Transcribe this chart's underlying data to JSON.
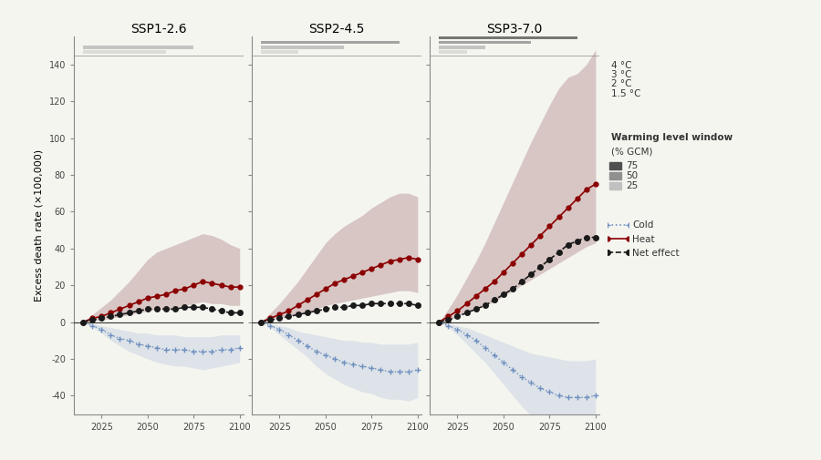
{
  "panels": [
    "SSP1-2.6",
    "SSP2-4.5",
    "SSP3-7.0"
  ],
  "years": [
    2015,
    2020,
    2025,
    2030,
    2035,
    2040,
    2045,
    2050,
    2055,
    2060,
    2065,
    2070,
    2075,
    2080,
    2085,
    2090,
    2095,
    2100
  ],
  "ssp1": {
    "heat_med": [
      0,
      2,
      3,
      5,
      7,
      9,
      11,
      13,
      14,
      15,
      17,
      18,
      20,
      22,
      21,
      20,
      19,
      19
    ],
    "heat_q75": [
      0,
      4,
      8,
      12,
      17,
      22,
      28,
      34,
      38,
      40,
      42,
      44,
      46,
      48,
      47,
      45,
      42,
      40
    ],
    "heat_q25": [
      0,
      1,
      1,
      2,
      3,
      4,
      5,
      6,
      7,
      7,
      8,
      9,
      10,
      11,
      10,
      10,
      9,
      9
    ],
    "net_med": [
      0,
      1,
      2,
      3,
      4,
      5,
      6,
      7,
      7,
      7,
      7,
      8,
      8,
      8,
      7,
      6,
      5,
      5
    ],
    "cold_med": [
      0,
      -2,
      -4,
      -7,
      -9,
      -10,
      -12,
      -13,
      -14,
      -15,
      -15,
      -15,
      -16,
      -16,
      -16,
      -15,
      -15,
      -14
    ],
    "cold_q75": [
      0,
      -1,
      -2,
      -3,
      -4,
      -5,
      -6,
      -6,
      -7,
      -7,
      -7,
      -8,
      -8,
      -8,
      -8,
      -7,
      -7,
      -7
    ],
    "cold_q25": [
      0,
      -3,
      -6,
      -10,
      -13,
      -16,
      -18,
      -20,
      -22,
      -23,
      -24,
      -24,
      -25,
      -26,
      -25,
      -24,
      -23,
      -22
    ]
  },
  "ssp2": {
    "heat_med": [
      0,
      2,
      4,
      6,
      9,
      12,
      15,
      18,
      21,
      23,
      25,
      27,
      29,
      31,
      33,
      34,
      35,
      34
    ],
    "heat_q75": [
      0,
      5,
      10,
      16,
      22,
      29,
      36,
      43,
      48,
      52,
      55,
      58,
      62,
      65,
      68,
      70,
      70,
      68
    ],
    "heat_q25": [
      0,
      1,
      2,
      3,
      4,
      5,
      7,
      9,
      10,
      11,
      12,
      13,
      14,
      15,
      16,
      17,
      17,
      16
    ],
    "net_med": [
      0,
      1,
      2,
      3,
      4,
      5,
      6,
      7,
      8,
      8,
      9,
      9,
      10,
      10,
      10,
      10,
      10,
      9
    ],
    "cold_med": [
      0,
      -2,
      -4,
      -7,
      -10,
      -13,
      -16,
      -18,
      -20,
      -22,
      -23,
      -24,
      -25,
      -26,
      -27,
      -27,
      -27,
      -26
    ],
    "cold_q75": [
      0,
      -1,
      -2,
      -3,
      -5,
      -6,
      -7,
      -8,
      -9,
      -10,
      -10,
      -11,
      -11,
      -12,
      -12,
      -12,
      -12,
      -11
    ],
    "cold_q25": [
      0,
      -3,
      -7,
      -11,
      -15,
      -19,
      -24,
      -28,
      -31,
      -34,
      -36,
      -38,
      -39,
      -41,
      -42,
      -42,
      -43,
      -41
    ]
  },
  "ssp3": {
    "heat_med": [
      0,
      3,
      6,
      10,
      14,
      18,
      22,
      27,
      32,
      37,
      42,
      47,
      52,
      57,
      62,
      67,
      72,
      75
    ],
    "heat_q75": [
      0,
      7,
      15,
      24,
      33,
      43,
      54,
      65,
      76,
      87,
      98,
      108,
      118,
      127,
      133,
      135,
      140,
      148
    ],
    "heat_q25": [
      0,
      1,
      3,
      5,
      7,
      9,
      11,
      14,
      17,
      20,
      23,
      26,
      29,
      32,
      35,
      38,
      41,
      43
    ],
    "net_med": [
      0,
      1,
      3,
      5,
      7,
      9,
      12,
      15,
      18,
      22,
      26,
      30,
      34,
      38,
      42,
      44,
      46,
      46
    ],
    "cold_med": [
      0,
      -2,
      -4,
      -7,
      -10,
      -14,
      -18,
      -22,
      -26,
      -30,
      -33,
      -36,
      -38,
      -40,
      -41,
      -41,
      -41,
      -40
    ],
    "cold_q75": [
      0,
      -1,
      -2,
      -3,
      -5,
      -7,
      -9,
      -11,
      -13,
      -15,
      -17,
      -18,
      -19,
      -20,
      -21,
      -21,
      -21,
      -20
    ],
    "cold_q25": [
      0,
      -3,
      -7,
      -12,
      -17,
      -22,
      -28,
      -34,
      -40,
      -46,
      -51,
      -56,
      -60,
      -64,
      -67,
      -68,
      -68,
      -67
    ]
  },
  "ylim": [
    -50,
    155
  ],
  "yticks": [
    -40,
    -20,
    0,
    20,
    40,
    60,
    80,
    100,
    120,
    140
  ],
  "ylabel": "Excess death rate (×100,000)",
  "heat_color": "#8B0000",
  "heat_fill_color": "#C0A0A0",
  "cold_color": "#7090C0",
  "cold_fill_color": "#C0CFDF",
  "net_color": "#1a1a1a",
  "hline_color": "#333333",
  "temp_bar_colors": [
    "#e0e0e0",
    "#c0c0c0",
    "#909090",
    "#505050"
  ],
  "temp_labels": [
    "4 °C",
    "3 °C",
    "2 °C",
    "1.5 °C"
  ],
  "background_color": "#f5f5f0"
}
